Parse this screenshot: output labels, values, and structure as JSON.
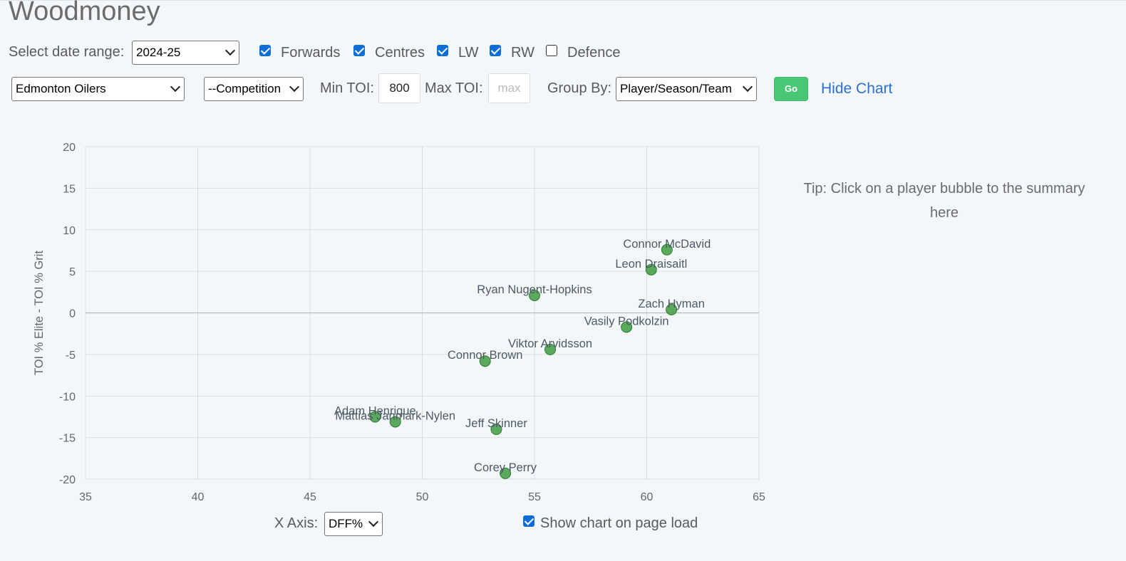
{
  "title": "Woodmoney",
  "filters": {
    "date_label": "Select date range:",
    "date_value": "2024-25",
    "positions": [
      {
        "label": "Forwards",
        "checked": true
      },
      {
        "label": "Centres",
        "checked": true
      },
      {
        "label": "LW",
        "checked": true
      },
      {
        "label": "RW",
        "checked": true
      },
      {
        "label": "Defence",
        "checked": false
      }
    ],
    "team_value": "Edmonton Oilers",
    "competition_value": "--Competition",
    "min_toi_label": "Min TOI:",
    "min_toi_value": "800",
    "max_toi_label": "Max TOI:",
    "max_toi_placeholder": "max",
    "group_by_label": "Group By:",
    "group_by_value": "Player/Season/Team",
    "go_label": "Go",
    "hide_chart_label": "Hide Chart"
  },
  "tip": "Tip: Click on a player bubble to the summary here",
  "x_axis_control": {
    "label": "X Axis:",
    "value": "DFF%"
  },
  "show_on_load": {
    "label": "Show chart on page load",
    "checked": true
  },
  "chart_data": {
    "type": "scatter",
    "ylabel": "TOI % Elite - TOI % Grit",
    "xlim": [
      35,
      65
    ],
    "ylim": [
      -20,
      20
    ],
    "x_ticks": [
      35,
      40,
      45,
      50,
      55,
      60,
      65
    ],
    "y_ticks": [
      20,
      15,
      10,
      5,
      0,
      -5,
      -10,
      -15,
      -20
    ],
    "grid": true,
    "point_color": "#4aa04a",
    "points": [
      {
        "name": "Connor McDavid",
        "x": 60.9,
        "y": 7.6
      },
      {
        "name": "Leon Draisaitl",
        "x": 60.2,
        "y": 5.2
      },
      {
        "name": "Ryan Nugent-Hopkins",
        "x": 55.0,
        "y": 2.1
      },
      {
        "name": "Zach Hyman",
        "x": 61.1,
        "y": 0.4
      },
      {
        "name": "Vasily Podkolzin",
        "x": 59.1,
        "y": -1.7
      },
      {
        "name": "Viktor Arvidsson",
        "x": 55.7,
        "y": -4.4
      },
      {
        "name": "Connor Brown",
        "x": 52.8,
        "y": -5.8
      },
      {
        "name": "Adam Henrique",
        "x": 47.9,
        "y": -12.5
      },
      {
        "name": "Mattias Janmark-Nylen",
        "x": 48.8,
        "y": -13.1
      },
      {
        "name": "Jeff Skinner",
        "x": 53.3,
        "y": -14.0
      },
      {
        "name": "Corey Perry",
        "x": 53.7,
        "y": -19.3
      }
    ]
  }
}
